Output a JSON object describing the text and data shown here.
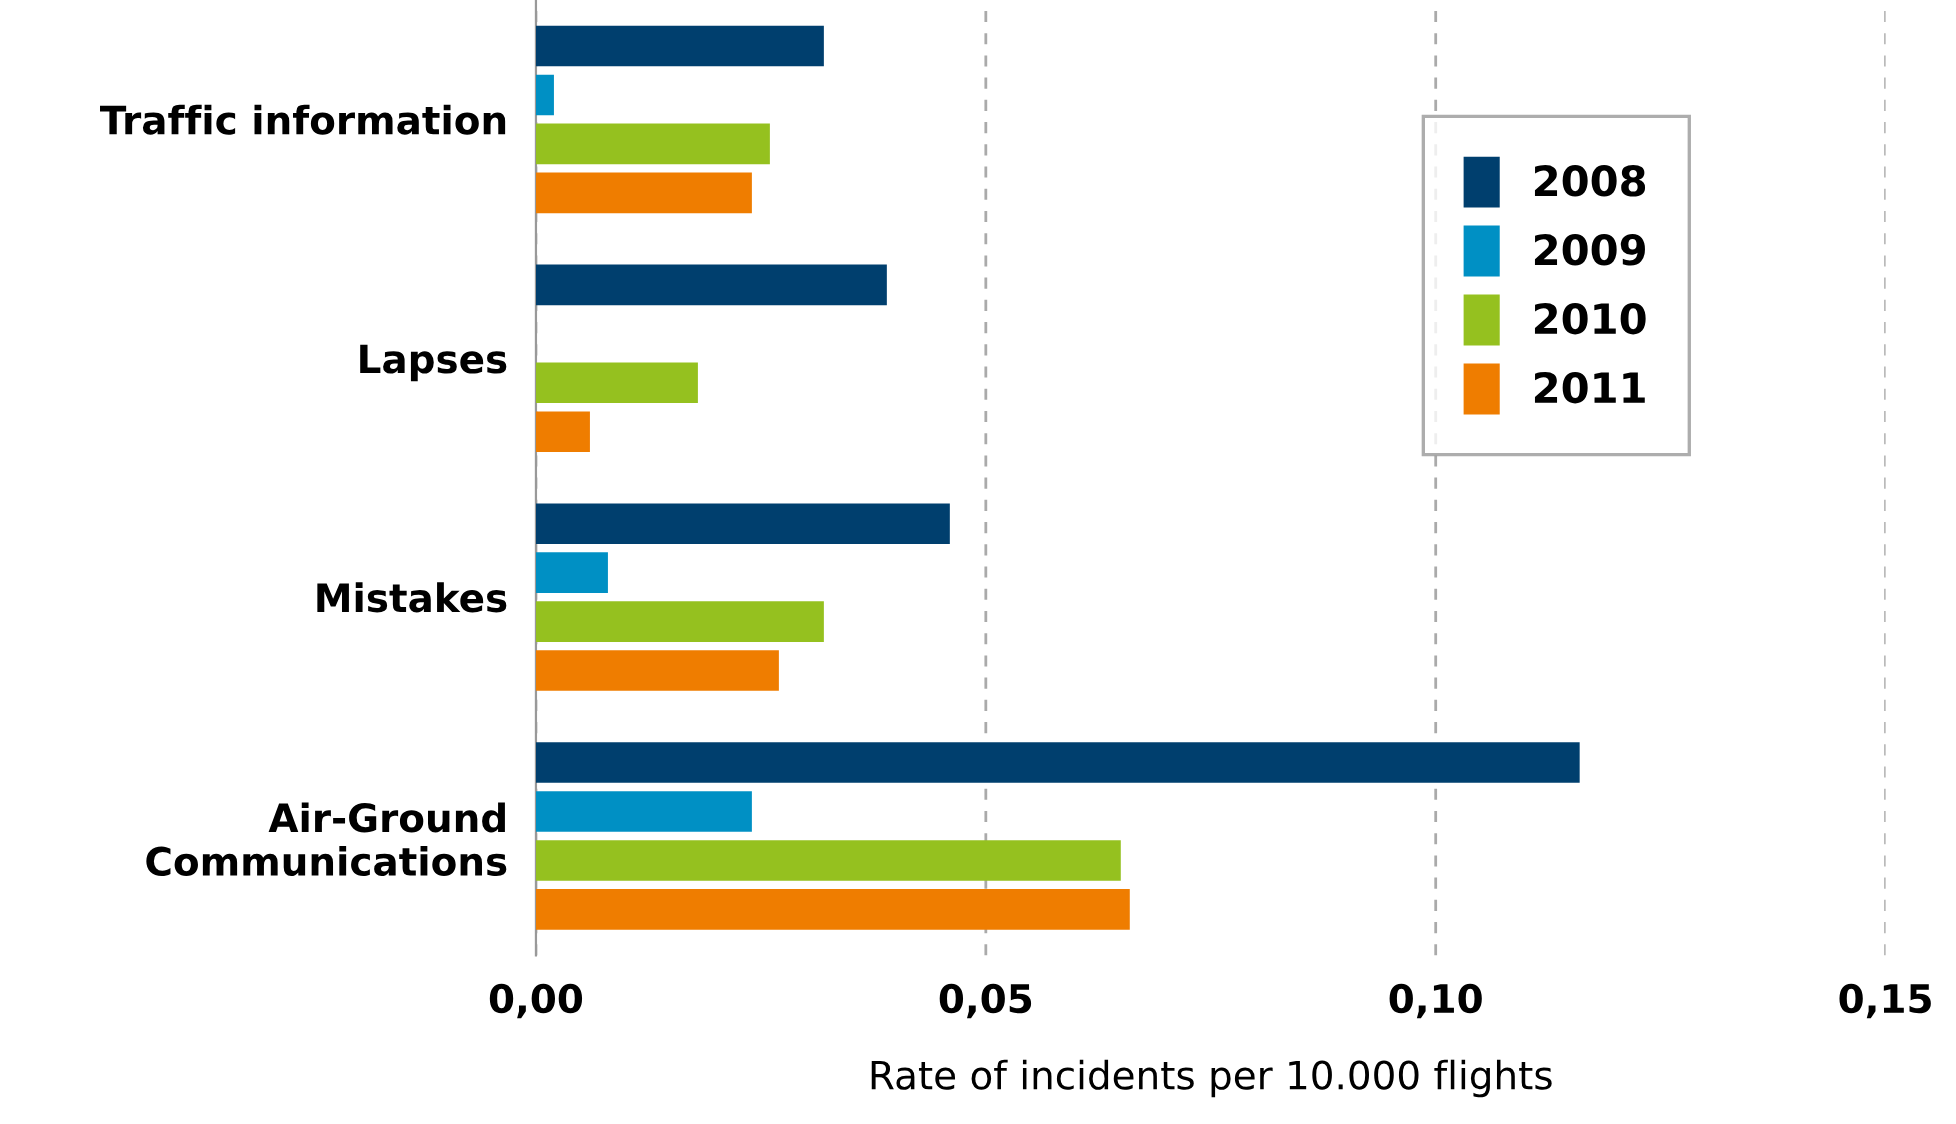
{
  "chart_data": {
    "type": "bar",
    "orientation": "horizontal",
    "xlabel": "Rate of incidents per 10.000 flights",
    "categories": [
      "Traffic information",
      "Lapses",
      "Mistakes",
      "Air-Ground\nCommunications"
    ],
    "series": [
      {
        "name": "2008",
        "color": "#003f6e",
        "values": [
          0.032,
          0.039,
          0.046,
          0.116
        ]
      },
      {
        "name": "2009",
        "color": "#0090c4",
        "values": [
          0.002,
          null,
          0.008,
          0.024
        ]
      },
      {
        "name": "2010",
        "color": "#95c11f",
        "values": [
          0.026,
          0.018,
          0.032,
          0.065
        ]
      },
      {
        "name": "2011",
        "color": "#ef7d00",
        "values": [
          0.024,
          0.006,
          0.027,
          0.066
        ]
      }
    ],
    "xlim": [
      0,
      0.15
    ],
    "xticks": [
      {
        "value": 0,
        "label": "0,00"
      },
      {
        "value": 0.05,
        "label": "0,05"
      },
      {
        "value": 0.1,
        "label": "0,10"
      },
      {
        "value": 0.15,
        "label": "0,15"
      }
    ],
    "grid": "x",
    "legend": "top right"
  }
}
